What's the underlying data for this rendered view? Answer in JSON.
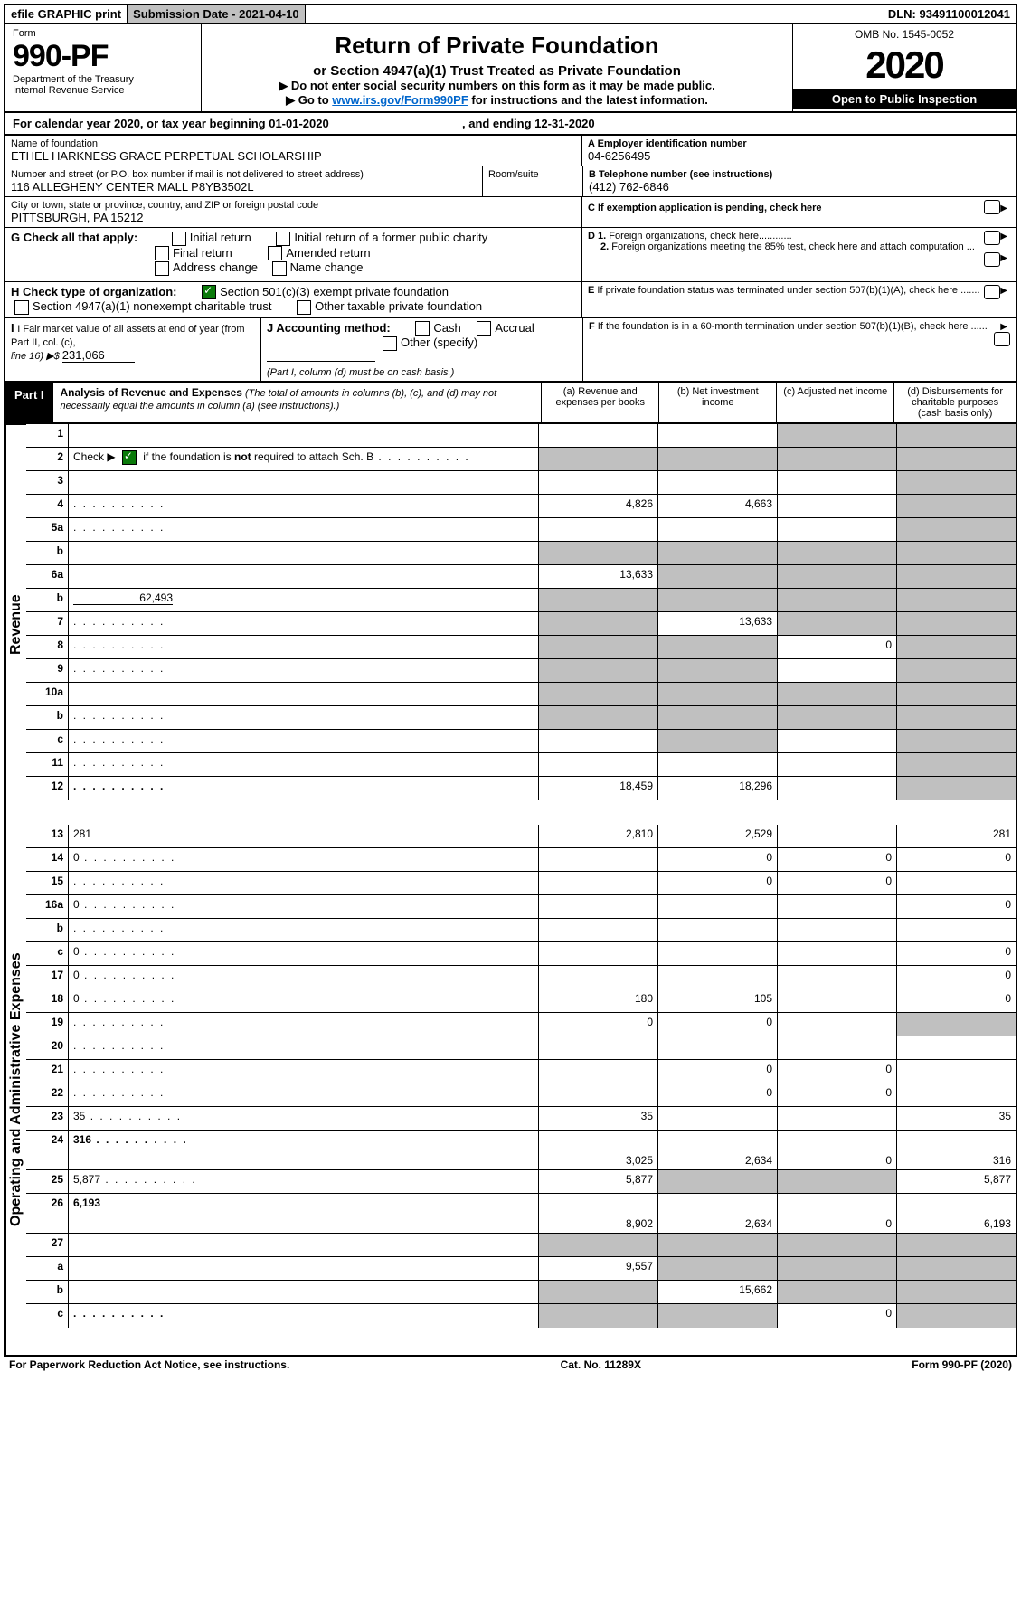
{
  "toprow": {
    "efile": "efile GRAPHIC print",
    "submission": "Submission Date - 2021-04-10",
    "dln": "DLN: 93491100012041"
  },
  "header": {
    "form_label": "Form",
    "form_number": "990-PF",
    "dept1": "Department of the Treasury",
    "dept2": "Internal Revenue Service",
    "title": "Return of Private Foundation",
    "subtitle1": "or Section 4947(a)(1) Trust Treated as Private Foundation",
    "subtitle2a": "▶ Do not enter social security numbers on this form as it may be made public.",
    "subtitle2b": "▶ Go to ",
    "link_text": "www.irs.gov/Form990PF",
    "subtitle2c": " for instructions and the latest information.",
    "omb": "OMB No. 1545-0052",
    "year": "2020",
    "open": "Open to Public Inspection"
  },
  "calrow": {
    "text1": "For calendar year 2020, or tax year beginning 01-01-2020",
    "text2": ", and ending 12-31-2020"
  },
  "ident": {
    "name_label": "Name of foundation",
    "name": "ETHEL HARKNESS GRACE PERPETUAL SCHOLARSHIP",
    "ein_label": "A Employer identification number",
    "ein": "04-6256495",
    "addr_label": "Number and street (or P.O. box number if mail is not delivered to street address)",
    "addr": "116 ALLEGHENY CENTER MALL P8YB3502L",
    "room_label": "Room/suite",
    "phone_label": "B Telephone number (see instructions)",
    "phone": "(412) 762-6846",
    "city_label": "City or town, state or province, country, and ZIP or foreign postal code",
    "city": "PITTSBURGH, PA  15212",
    "c_label": "C If exemption application is pending, check here"
  },
  "checks": {
    "g_label": "G Check all that apply:",
    "initial": "Initial return",
    "initial_former": "Initial return of a former public charity",
    "final": "Final return",
    "amended": "Amended return",
    "addr_change": "Address change",
    "name_change": "Name change",
    "d1": "D 1. Foreign organizations, check here............",
    "d2": "2. Foreign organizations meeting the 85% test, check here and attach computation ...",
    "h_label": "H Check type of organization:",
    "h1": "Section 501(c)(3) exempt private foundation",
    "h2": "Section 4947(a)(1) nonexempt charitable trust",
    "h3": "Other taxable private foundation",
    "e_label": "E  If private foundation status was terminated under section 507(b)(1)(A), check here .......",
    "i_label": "I Fair market value of all assets at end of year (from Part II, col. (c),",
    "i_line": "line 16) ▶$ ",
    "i_value": "231,066",
    "j_label": "J Accounting method:",
    "j_cash": "Cash",
    "j_accrual": "Accrual",
    "j_other": "Other (specify)",
    "j_note": "(Part I, column (d) must be on cash basis.)",
    "f_label": "F  If the foundation is in a 60-month termination under section 507(b)(1)(B), check here ......"
  },
  "part1": {
    "label": "Part I",
    "title": "Analysis of Revenue and Expenses",
    "note": " (The total of amounts in columns (b), (c), and (d) may not necessarily equal the amounts in column (a) (see instructions).)",
    "col_a": "(a) Revenue and expenses per books",
    "col_b": "(b) Net investment income",
    "col_c": "(c) Adjusted net income",
    "col_d": "(d) Disbursements for charitable purposes (cash basis only)"
  },
  "sidebands": {
    "revenue": "Revenue",
    "expenses": "Operating and Administrative Expenses"
  },
  "lines": [
    {
      "n": "1",
      "d": "",
      "a": "",
      "b": "",
      "c": "",
      "shade_c": true,
      "shade_d": true
    },
    {
      "n": "2",
      "d": "",
      "a": "",
      "b": "",
      "c": "",
      "dots": true,
      "shade_a": true,
      "shade_b": true,
      "shade_c": true,
      "shade_d": true,
      "checked": true
    },
    {
      "n": "3",
      "d": "",
      "a": "",
      "b": "",
      "c": "",
      "shade_d": true
    },
    {
      "n": "4",
      "d": "",
      "a": "4,826",
      "b": "4,663",
      "c": "",
      "dots": true,
      "shade_d": true
    },
    {
      "n": "5a",
      "d": "",
      "a": "",
      "b": "",
      "c": "",
      "dots": true,
      "shade_d": true
    },
    {
      "n": "b",
      "d": "",
      "a": "",
      "b": "",
      "c": "",
      "underline": true,
      "shade_a": true,
      "shade_b": true,
      "shade_c": true,
      "shade_d": true
    },
    {
      "n": "6a",
      "d": "",
      "a": "13,633",
      "b": "",
      "c": "",
      "shade_b": true,
      "shade_c": true,
      "shade_d": true
    },
    {
      "n": "b",
      "d": "",
      "a": "",
      "b": "",
      "c": "",
      "inline_val": "62,493",
      "shade_a": true,
      "shade_b": true,
      "shade_c": true,
      "shade_d": true
    },
    {
      "n": "7",
      "d": "",
      "a": "",
      "b": "13,633",
      "c": "",
      "dots": true,
      "shade_a": true,
      "shade_c": true,
      "shade_d": true
    },
    {
      "n": "8",
      "d": "",
      "a": "",
      "b": "",
      "c": "0",
      "dots": true,
      "shade_a": true,
      "shade_b": true,
      "shade_d": true
    },
    {
      "n": "9",
      "d": "",
      "a": "",
      "b": "",
      "c": "",
      "dots": true,
      "shade_a": true,
      "shade_b": true,
      "shade_d": true
    },
    {
      "n": "10a",
      "d": "",
      "a": "",
      "b": "",
      "c": "",
      "shade_a": true,
      "shade_b": true,
      "shade_c": true,
      "shade_d": true,
      "box": true
    },
    {
      "n": "b",
      "d": "",
      "a": "",
      "b": "",
      "c": "",
      "dots": true,
      "shade_a": true,
      "shade_b": true,
      "shade_c": true,
      "shade_d": true,
      "box": true
    },
    {
      "n": "c",
      "d": "",
      "a": "",
      "b": "",
      "c": "",
      "dots": true,
      "shade_b": true,
      "shade_d": true
    },
    {
      "n": "11",
      "d": "",
      "a": "",
      "b": "",
      "c": "",
      "dots": true,
      "shade_d": true
    },
    {
      "n": "12",
      "d": "",
      "a": "18,459",
      "b": "18,296",
      "c": "",
      "dots": true,
      "bold": true,
      "shade_d": true
    }
  ],
  "exp_lines": [
    {
      "n": "13",
      "d": "281",
      "a": "2,810",
      "b": "2,529",
      "c": ""
    },
    {
      "n": "14",
      "d": "0",
      "a": "",
      "b": "0",
      "c": "0",
      "dots": true
    },
    {
      "n": "15",
      "d": "",
      "a": "",
      "b": "0",
      "c": "0",
      "dots": true
    },
    {
      "n": "16a",
      "d": "0",
      "a": "",
      "b": "",
      "c": "",
      "dots": true
    },
    {
      "n": "b",
      "d": "",
      "a": "",
      "b": "",
      "c": "",
      "dots": true
    },
    {
      "n": "c",
      "d": "0",
      "a": "",
      "b": "",
      "c": "",
      "dots": true
    },
    {
      "n": "17",
      "d": "0",
      "a": "",
      "b": "",
      "c": "",
      "dots": true
    },
    {
      "n": "18",
      "d": "0",
      "a": "180",
      "b": "105",
      "c": "",
      "dots": true
    },
    {
      "n": "19",
      "d": "",
      "a": "0",
      "b": "0",
      "c": "",
      "dots": true,
      "shade_d": true
    },
    {
      "n": "20",
      "d": "",
      "a": "",
      "b": "",
      "c": "",
      "dots": true
    },
    {
      "n": "21",
      "d": "",
      "a": "",
      "b": "0",
      "c": "0",
      "dots": true
    },
    {
      "n": "22",
      "d": "",
      "a": "",
      "b": "0",
      "c": "0",
      "dots": true
    },
    {
      "n": "23",
      "d": "35",
      "a": "35",
      "b": "",
      "c": "",
      "dots": true
    },
    {
      "n": "24",
      "d": "316",
      "a": "3,025",
      "b": "2,634",
      "c": "0",
      "dots": true,
      "bold": true,
      "twoline": true
    },
    {
      "n": "25",
      "d": "5,877",
      "a": "5,877",
      "b": "",
      "c": "",
      "dots": true,
      "shade_b": true,
      "shade_c": true
    },
    {
      "n": "26",
      "d": "6,193",
      "a": "8,902",
      "b": "2,634",
      "c": "0",
      "bold": true,
      "twoline": true
    },
    {
      "n": "27",
      "d": "",
      "a": "",
      "b": "",
      "c": "",
      "shade_a": true,
      "shade_b": true,
      "shade_c": true,
      "shade_d": true
    },
    {
      "n": "a",
      "d": "",
      "a": "9,557",
      "b": "",
      "c": "",
      "bold": true,
      "shade_b": true,
      "shade_c": true,
      "shade_d": true
    },
    {
      "n": "b",
      "d": "",
      "a": "",
      "b": "15,662",
      "c": "",
      "bold": true,
      "shade_a": true,
      "shade_c": true,
      "shade_d": true
    },
    {
      "n": "c",
      "d": "",
      "a": "",
      "b": "",
      "c": "0",
      "bold": true,
      "dots": true,
      "shade_a": true,
      "shade_b": true,
      "shade_d": true
    }
  ],
  "footer": {
    "left": "For Paperwork Reduction Act Notice, see instructions.",
    "center": "Cat. No. 11289X",
    "right": "Form 990-PF (2020)"
  }
}
